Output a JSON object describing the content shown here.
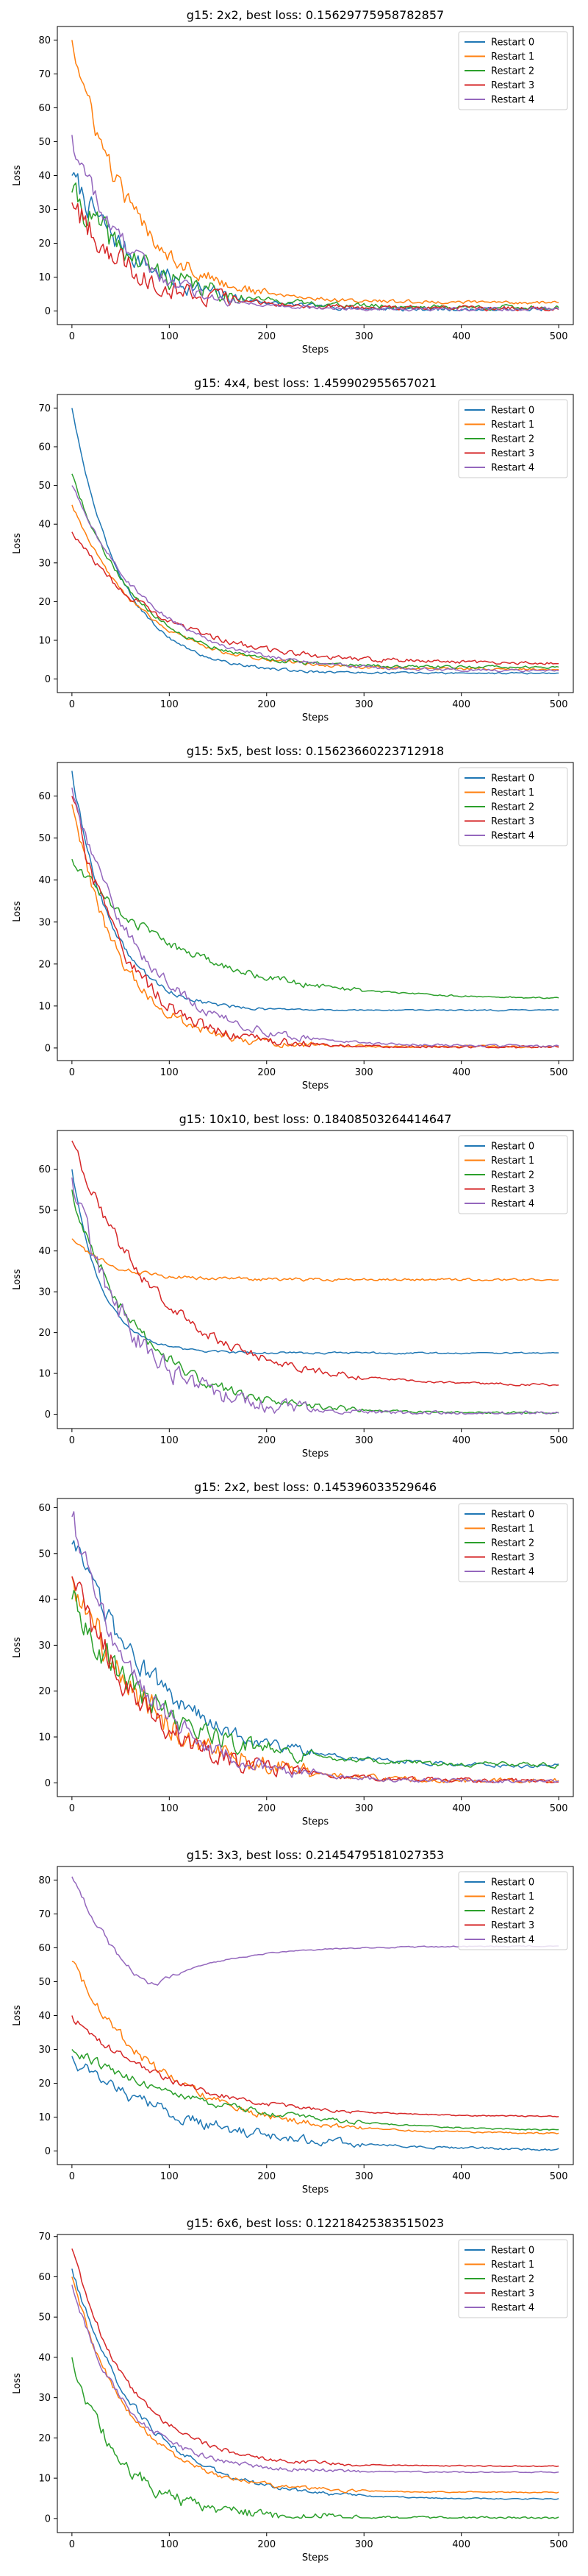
{
  "figure": {
    "suptitle": ""
  },
  "legend_labels": [
    "Restart 0",
    "Restart 1",
    "Restart 2",
    "Restart 3",
    "Restart 4"
  ],
  "colors": [
    "#1f77b4",
    "#ff7f0e",
    "#2ca02c",
    "#d62728",
    "#9467bd"
  ],
  "chart_data": [
    {
      "type": "line",
      "title": "g15: 2x2, best loss: 0.15629775958782857",
      "xlabel": "Steps",
      "ylabel": "Loss",
      "xlim": [
        -15,
        515
      ],
      "ylim": [
        -4,
        84
      ],
      "xticks": [
        0,
        100,
        200,
        300,
        400,
        500
      ],
      "yticks": [
        0,
        10,
        20,
        30,
        40,
        50,
        60,
        70,
        80
      ],
      "legend": "top-right",
      "series": [
        {
          "name": "Restart 0",
          "start": 40,
          "final": 0.3,
          "tau": 70,
          "noise": 3.5,
          "noise_end": 180
        },
        {
          "name": "Restart 1",
          "start": 80,
          "final": 2.5,
          "tau": 60,
          "noise": 3.0,
          "noise_end": 200
        },
        {
          "name": "Restart 2",
          "start": 35,
          "final": 1.0,
          "tau": 75,
          "noise": 4.0,
          "noise_end": 180
        },
        {
          "name": "Restart 3",
          "start": 32,
          "final": 0.8,
          "tau": 65,
          "noise": 4.0,
          "noise_end": 170
        },
        {
          "name": "Restart 4",
          "start": 52,
          "final": 0.5,
          "tau": 55,
          "noise": 3.0,
          "noise_end": 170
        }
      ]
    },
    {
      "type": "line",
      "title": "g15: 4x4, best loss: 1.459902955657021",
      "xlabel": "Steps",
      "ylabel": "Loss",
      "xlim": [
        -15,
        515
      ],
      "ylim": [
        -3.5,
        73.5
      ],
      "xticks": [
        0,
        100,
        200,
        300,
        400,
        500
      ],
      "yticks": [
        0,
        10,
        20,
        30,
        40,
        50,
        60,
        70
      ],
      "legend": "top-right",
      "series": [
        {
          "name": "Restart 0",
          "start": 70,
          "final": 1.5,
          "tau": 50,
          "noise": 0.4,
          "noise_end": 500
        },
        {
          "name": "Restart 1",
          "start": 45,
          "final": 2.5,
          "tau": 70,
          "noise": 0.5,
          "noise_end": 500
        },
        {
          "name": "Restart 2",
          "start": 53,
          "final": 3.0,
          "tau": 65,
          "noise": 0.6,
          "noise_end": 500
        },
        {
          "name": "Restart 3",
          "start": 38,
          "final": 4.0,
          "tau": 90,
          "noise": 0.8,
          "noise_end": 500
        },
        {
          "name": "Restart 4",
          "start": 50,
          "final": 2.0,
          "tau": 80,
          "noise": 0.6,
          "noise_end": 500
        }
      ]
    },
    {
      "type": "line",
      "title": "g15: 5x5, best loss: 0.15623660223712918",
      "xlabel": "Steps",
      "ylabel": "Loss",
      "xlim": [
        -15,
        515
      ],
      "ylim": [
        -3,
        68
      ],
      "xticks": [
        0,
        100,
        200,
        300,
        400,
        500
      ],
      "yticks": [
        0,
        10,
        20,
        30,
        40,
        50,
        60
      ],
      "legend": "top-right",
      "series": [
        {
          "name": "Restart 0",
          "start": 66,
          "final": 9.0,
          "tau": 40,
          "noise": 0.8,
          "noise_end": 200
        },
        {
          "name": "Restart 1",
          "start": 58,
          "final": 0.3,
          "tau": 50,
          "noise": 1.5,
          "noise_end": 250
        },
        {
          "name": "Restart 2",
          "start": 45,
          "final": 11.5,
          "tau": 110,
          "noise": 1.2,
          "noise_end": 300
        },
        {
          "name": "Restart 3",
          "start": 60,
          "final": 0.2,
          "tau": 55,
          "noise": 2.0,
          "noise_end": 250
        },
        {
          "name": "Restart 4",
          "start": 62,
          "final": 0.4,
          "tau": 70,
          "noise": 1.5,
          "noise_end": 250
        }
      ]
    },
    {
      "type": "line",
      "title": "g15: 10x10, best loss: 0.18408503264414647",
      "xlabel": "Steps",
      "ylabel": "Loss",
      "xlim": [
        -15,
        515
      ],
      "ylim": [
        -3.5,
        69.5
      ],
      "xticks": [
        0,
        100,
        200,
        300,
        400,
        500
      ],
      "yticks": [
        0,
        10,
        20,
        30,
        40,
        50,
        60
      ],
      "legend": "top-right",
      "series": [
        {
          "name": "Restart 0",
          "start": 60,
          "final": 15.0,
          "tau": 30,
          "noise": 0.3,
          "noise_end": 500
        },
        {
          "name": "Restart 1",
          "start": 43,
          "final": 33.0,
          "tau": 40,
          "noise": 0.5,
          "noise_end": 500
        },
        {
          "name": "Restart 2",
          "start": 55,
          "final": 0.3,
          "tau": 70,
          "noise": 1.5,
          "noise_end": 300
        },
        {
          "name": "Restart 3",
          "start": 67,
          "final": 7.0,
          "tau": 90,
          "noise": 1.5,
          "noise_end": 300
        },
        {
          "name": "Restart 4",
          "start": 58,
          "final": 0.2,
          "tau": 60,
          "noise": 3.0,
          "noise_end": 250
        }
      ]
    },
    {
      "type": "line",
      "title": "g15: 2x2, best loss: 0.145396033529646",
      "xlabel": "Steps",
      "ylabel": "Loss",
      "xlim": [
        -15,
        515
      ],
      "ylim": [
        -3,
        62
      ],
      "xticks": [
        0,
        100,
        200,
        300,
        400,
        500
      ],
      "yticks": [
        0,
        10,
        20,
        30,
        40,
        50,
        60
      ],
      "legend": "top-right",
      "series": [
        {
          "name": "Restart 0",
          "start": 52,
          "final": 3.5,
          "tau": 90,
          "noise": 2.5,
          "noise_end": 250
        },
        {
          "name": "Restart 1",
          "start": 45,
          "final": 0.2,
          "tau": 80,
          "noise": 3.5,
          "noise_end": 250
        },
        {
          "name": "Restart 2",
          "start": 40,
          "final": 3.8,
          "tau": 85,
          "noise": 3.0,
          "noise_end": 250
        },
        {
          "name": "Restart 3",
          "start": 45,
          "final": 0.3,
          "tau": 75,
          "noise": 3.0,
          "noise_end": 250
        },
        {
          "name": "Restart 4",
          "start": 58,
          "final": 0.2,
          "tau": 70,
          "noise": 2.5,
          "noise_end": 250
        }
      ]
    },
    {
      "type": "line",
      "title": "g15: 3x3, best loss: 0.21454795181027353",
      "xlabel": "Steps",
      "ylabel": "Loss",
      "xlim": [
        -15,
        515
      ],
      "ylim": [
        -4,
        84
      ],
      "xticks": [
        0,
        100,
        200,
        300,
        400,
        500
      ],
      "yticks": [
        0,
        10,
        20,
        30,
        40,
        50,
        60,
        70,
        80
      ],
      "legend": "top-right",
      "series": [
        {
          "name": "Restart 0",
          "start": 28,
          "final": 0.2,
          "tau": 110,
          "noise": 2.0,
          "noise_end": 300
        },
        {
          "name": "Restart 1",
          "start": 56,
          "final": 5.0,
          "tau": 90,
          "noise": 1.5,
          "noise_end": 300
        },
        {
          "name": "Restart 2",
          "start": 30,
          "final": 5.5,
          "tau": 140,
          "noise": 1.2,
          "noise_end": 300
        },
        {
          "name": "Restart 3",
          "start": 40,
          "final": 10.0,
          "tau": 100,
          "noise": 1.0,
          "noise_end": 300
        },
        {
          "name": "Restart 4",
          "start": 81,
          "final": 60.5,
          "tau": 70,
          "noise": 1.0,
          "noise_end": 120,
          "dip": 49,
          "dip_at": 85
        }
      ]
    },
    {
      "type": "line",
      "title": "g15: 6x6, best loss: 0.12218425383515023",
      "xlabel": "Steps",
      "ylabel": "Loss",
      "xlim": [
        -15,
        515
      ],
      "ylim": [
        -3.5,
        70.5
      ],
      "xticks": [
        0,
        100,
        200,
        300,
        400,
        500
      ],
      "yticks": [
        0,
        10,
        20,
        30,
        40,
        50,
        60,
        70
      ],
      "legend": "top-right",
      "series": [
        {
          "name": "Restart 0",
          "start": 62,
          "final": 4.8,
          "tau": 70,
          "noise": 0.8,
          "noise_end": 300
        },
        {
          "name": "Restart 1",
          "start": 60,
          "final": 6.5,
          "tau": 60,
          "noise": 0.8,
          "noise_end": 300
        },
        {
          "name": "Restart 2",
          "start": 40,
          "final": 0.2,
          "tau": 50,
          "noise": 1.8,
          "noise_end": 300
        },
        {
          "name": "Restart 3",
          "start": 67,
          "final": 13.0,
          "tau": 60,
          "noise": 0.8,
          "noise_end": 300
        },
        {
          "name": "Restart 4",
          "start": 58,
          "final": 11.5,
          "tau": 55,
          "noise": 0.8,
          "noise_end": 300
        }
      ]
    }
  ]
}
